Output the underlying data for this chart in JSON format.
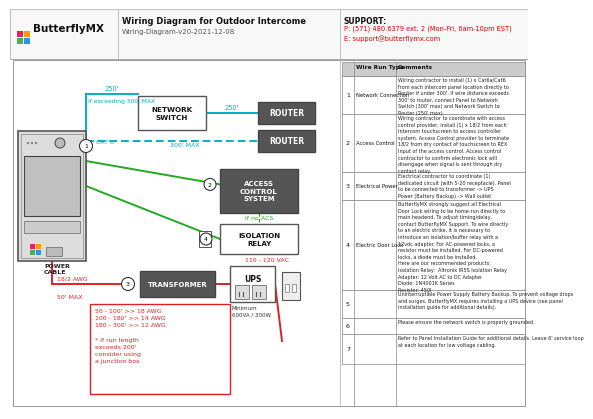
{
  "title": "Wiring Diagram for Outdoor Intercome",
  "subtitle": "Wiring-Diagram-v20-2021-12-08",
  "support_title": "SUPPORT:",
  "support_phone": "P: (571) 480.6379 ext. 2 (Mon-Fri, 6am-10pm EST)",
  "support_email": "E: support@butterflymx.com",
  "cyan": "#00b0c8",
  "green": "#22aa22",
  "red": "#dd2222",
  "dark": "#333333",
  "gray_box": "#555555",
  "wire_run_entries": [
    {
      "num": "1",
      "type": "Network Connection",
      "comment": "Wiring contractor to install (1) x Cat6a/Cat6\nfrom each intercom panel location directly to\nRouter if under 300'. If wire distance exceeds\n300' to router, connect Panel to Network\nSwitch (300' max) and Network Switch to\nRouter (250' max)."
    },
    {
      "num": "2",
      "type": "Access Control",
      "comment": "Wiring contractor to coordinate with access\ncontrol provider, install (1) x 18/2 from each\nIntercom touchscreen to access controller\nsystem. Access Control provider to terminate\n18/2 from dry contact of touchscreen to REX\nInput of the access control. Access control\ncontractor to confirm electronic lock will\ndisengage when signal is sent through dry\ncontact relay."
    },
    {
      "num": "3",
      "type": "Electrical Power",
      "comment": "Electrical contractor to coordinate (1)\ndedicated circuit (with 5-20 receptacle). Panel\nto be connected to transformer -> UPS\nPower (Battery Backup) -> Wall outlet"
    },
    {
      "num": "4",
      "type": "Electric Door Lock",
      "comment": "ButterflyMX strongly suggest all Electrical\nDoor Lock wiring to be home-run directly to\nmain headend. To adjust timing/delay,\ncontact ButterflyMX Support. To wire directly\nto an electric strike, it is necessary to\nintroduce an isolation/buffer relay with a\n12vdc adapter. For AC-powered locks, a\nresistor must be installed. For DC-powered\nlocks, a diode must be installed.\nHere are our recommended products:\nIsolation Relay:  Altronix IR5S Isolation Relay\nAdapter: 12 Volt AC to DC Adapter\nDiode: 1N4001K Series\nResistor: 450I"
    },
    {
      "num": "5",
      "type": "",
      "comment": "Uninterruptible Power Supply Battery Backup. To prevent voltage drops\nand surges, ButterflyMX requires installing a UPS device (see panel\ninstallation guide for additional details)."
    },
    {
      "num": "6",
      "type": "",
      "comment": "Please ensure the network switch is properly grounded."
    },
    {
      "num": "7",
      "type": "",
      "comment": "Refer to Panel Installation Guide for additional details. Leave 6' service loop\nat each location for low voltage cabling."
    }
  ]
}
